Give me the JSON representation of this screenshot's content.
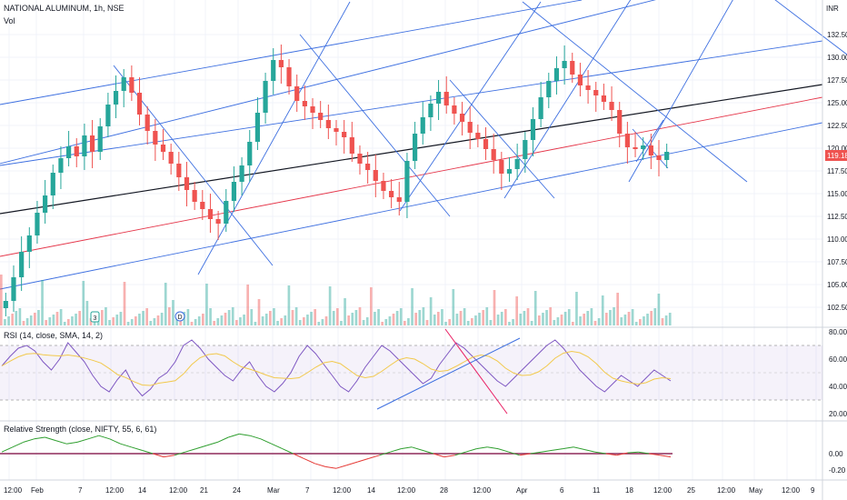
{
  "header": {
    "symbol": "NATIONAL ALUMINUM, 1h, NSE",
    "volume_label": "Vol",
    "currency": "INR"
  },
  "price_axis": {
    "ticks": [
      "132.50",
      "130.00",
      "127.50",
      "125.00",
      "122.50",
      "120.00",
      "117.50",
      "115.00",
      "112.50",
      "110.00",
      "107.50",
      "105.00",
      "102.50"
    ],
    "last_price": "119.18"
  },
  "rsi": {
    "title": "RSI (14, close, SMA, 14, 2)",
    "ticks": [
      "80.00",
      "60.00",
      "40.00",
      "20.00"
    ]
  },
  "relative_strength": {
    "title": "Relative Strength (close, NIFTY, 55, 6, 61)",
    "ticks": [
      "0.00",
      "-0.20"
    ]
  },
  "time_axis": [
    "12:00",
    "Feb",
    "7",
    "12:00",
    "14",
    "12:00",
    "21",
    "24",
    "Mar",
    "7",
    "12:00",
    "14",
    "12:00",
    "28",
    "12:00",
    "Apr",
    "6",
    "11",
    "18",
    "12:00",
    "25",
    "12:00",
    "May",
    "12:00",
    "9"
  ],
  "volume_markers": [
    "3",
    "D"
  ],
  "colors": {
    "up": "#26a69a",
    "down": "#ef5350",
    "channel": "#3d6fe0",
    "midline": "#131722",
    "redline": "#e5364a",
    "rsi": "#7e57c2",
    "rsi_ma": "#f2c94c",
    "rs_up": "#2e9e2e",
    "rs_down": "#e53935",
    "rs_zero": "#8e2a5a"
  },
  "chart_data": [
    {
      "type": "candlestick",
      "title": "NATIONAL ALUMINUM, 1h, NSE",
      "ylim": [
        100.0,
        135.0
      ],
      "close_series": [
        103.2,
        105.8,
        108.6,
        110.4,
        112.9,
        114.8,
        117.3,
        118.9,
        120.2,
        119.1,
        121.4,
        119.6,
        122.4,
        124.8,
        126.3,
        127.8,
        126.1,
        123.7,
        121.9,
        120.4,
        119.6,
        118.3,
        116.8,
        115.4,
        114.1,
        113.3,
        112.2,
        111.7,
        114.2,
        116.3,
        118.1,
        120.7,
        123.9,
        127.4,
        129.7,
        128.9,
        126.8,
        125.2,
        124.6,
        123.9,
        123.1,
        122.2,
        121.8,
        121.2,
        119.4,
        118.3,
        117.6,
        116.4,
        115.3,
        114.6,
        114.1,
        118.6,
        121.6,
        123.4,
        124.9,
        126.2,
        124.7,
        123.8,
        122.9,
        121.7,
        121.0,
        119.9,
        118.7,
        117.2,
        117.7,
        118.8,
        120.9,
        123.2,
        125.6,
        127.4,
        128.8,
        129.6,
        128.1,
        126.9,
        126.4,
        125.8,
        125.1,
        124.2,
        121.6,
        120.1,
        119.9,
        120.3,
        119.2,
        118.7,
        119.6
      ],
      "last": 119.18
    },
    {
      "type": "line",
      "title": "RSI (14, close, SMA, 14, 2)",
      "ylim": [
        20,
        80
      ],
      "bands": [
        30,
        70
      ],
      "values": [
        55,
        62,
        68,
        70,
        66,
        58,
        52,
        60,
        72,
        65,
        58,
        48,
        40,
        36,
        45,
        52,
        40,
        33,
        38,
        46,
        50,
        58,
        70,
        74,
        68,
        60,
        54,
        48,
        44,
        52,
        58,
        48,
        40,
        36,
        42,
        50,
        62,
        70,
        64,
        56,
        48,
        40,
        36,
        44,
        54,
        62,
        70,
        66,
        60,
        54,
        48,
        42,
        46,
        56,
        64,
        72,
        68,
        62,
        56,
        50,
        44,
        40,
        46,
        52,
        58,
        64,
        70,
        74,
        68,
        60,
        52,
        46,
        40,
        36,
        42,
        48,
        44,
        40,
        46,
        52,
        48,
        44
      ]
    },
    {
      "type": "line",
      "title": "Relative Strength (close, NIFTY, 55, 6, 61)",
      "ylim": [
        -0.25,
        0.3
      ],
      "values": [
        0.02,
        0.08,
        0.14,
        0.18,
        0.2,
        0.16,
        0.12,
        0.14,
        0.18,
        0.22,
        0.18,
        0.12,
        0.08,
        0.04,
        0.0,
        -0.04,
        -0.02,
        0.02,
        0.06,
        0.1,
        0.14,
        0.2,
        0.24,
        0.22,
        0.18,
        0.12,
        0.06,
        0.0,
        -0.06,
        -0.12,
        -0.16,
        -0.18,
        -0.14,
        -0.1,
        -0.06,
        -0.02,
        0.02,
        0.06,
        0.08,
        0.04,
        0.0,
        -0.04,
        -0.02,
        0.02,
        0.06,
        0.08,
        0.06,
        0.02,
        -0.02,
        0.0,
        0.02,
        0.04,
        0.06,
        0.08,
        0.05,
        0.02,
        0.0,
        -0.02,
        0.01,
        0.02,
        0.0,
        -0.02,
        -0.04
      ]
    }
  ]
}
